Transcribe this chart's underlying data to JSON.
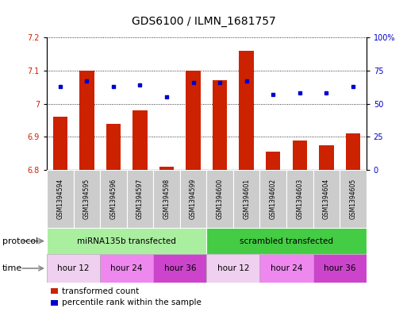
{
  "title": "GDS6100 / ILMN_1681757",
  "samples": [
    "GSM1394594",
    "GSM1394595",
    "GSM1394596",
    "GSM1394597",
    "GSM1394598",
    "GSM1394599",
    "GSM1394600",
    "GSM1394601",
    "GSM1394602",
    "GSM1394603",
    "GSM1394604",
    "GSM1394605"
  ],
  "transformed_count": [
    6.96,
    7.1,
    6.94,
    6.98,
    6.81,
    7.1,
    7.07,
    7.16,
    6.855,
    6.89,
    6.875,
    6.91
  ],
  "percentile_rank": [
    63,
    67,
    63,
    64,
    55,
    66,
    66,
    67,
    57,
    58,
    58,
    63
  ],
  "ylim_left": [
    6.8,
    7.2
  ],
  "ylim_right": [
    0,
    100
  ],
  "yticks_left": [
    6.8,
    6.9,
    7.0,
    7.1,
    7.2
  ],
  "ytick_labels_left": [
    "6.8",
    "6.9",
    "7",
    "7.1",
    "7.2"
  ],
  "yticks_right": [
    0,
    25,
    50,
    75,
    100
  ],
  "ytick_labels_right": [
    "0",
    "25",
    "50",
    "75",
    "100%"
  ],
  "bar_color": "#cc2200",
  "dot_color": "#0000cc",
  "bar_bottom": 6.8,
  "protocol_groups": [
    {
      "label": "miRNA135b transfected",
      "start": 0,
      "end": 6,
      "color": "#aaeea0"
    },
    {
      "label": "scrambled transfected",
      "start": 6,
      "end": 12,
      "color": "#44cc44"
    }
  ],
  "time_groups": [
    {
      "label": "hour 12",
      "start": 0,
      "end": 2,
      "color": "#f0d0f0"
    },
    {
      "label": "hour 24",
      "start": 2,
      "end": 4,
      "color": "#ee88ee"
    },
    {
      "label": "hour 36",
      "start": 4,
      "end": 6,
      "color": "#cc44cc"
    },
    {
      "label": "hour 12",
      "start": 6,
      "end": 8,
      "color": "#f0d0f0"
    },
    {
      "label": "hour 24",
      "start": 8,
      "end": 10,
      "color": "#ee88ee"
    },
    {
      "label": "hour 36",
      "start": 10,
      "end": 12,
      "color": "#cc44cc"
    }
  ],
  "legend_items": [
    {
      "label": "transformed count",
      "color": "#cc2200"
    },
    {
      "label": "percentile rank within the sample",
      "color": "#0000cc"
    }
  ],
  "protocol_label": "protocol",
  "time_label": "time",
  "sample_bg_color": "#cccccc",
  "title_fontsize": 10,
  "tick_fontsize": 7,
  "sample_fontsize": 5.5,
  "row_label_fontsize": 8,
  "row_text_fontsize": 7.5,
  "legend_fontsize": 7.5
}
